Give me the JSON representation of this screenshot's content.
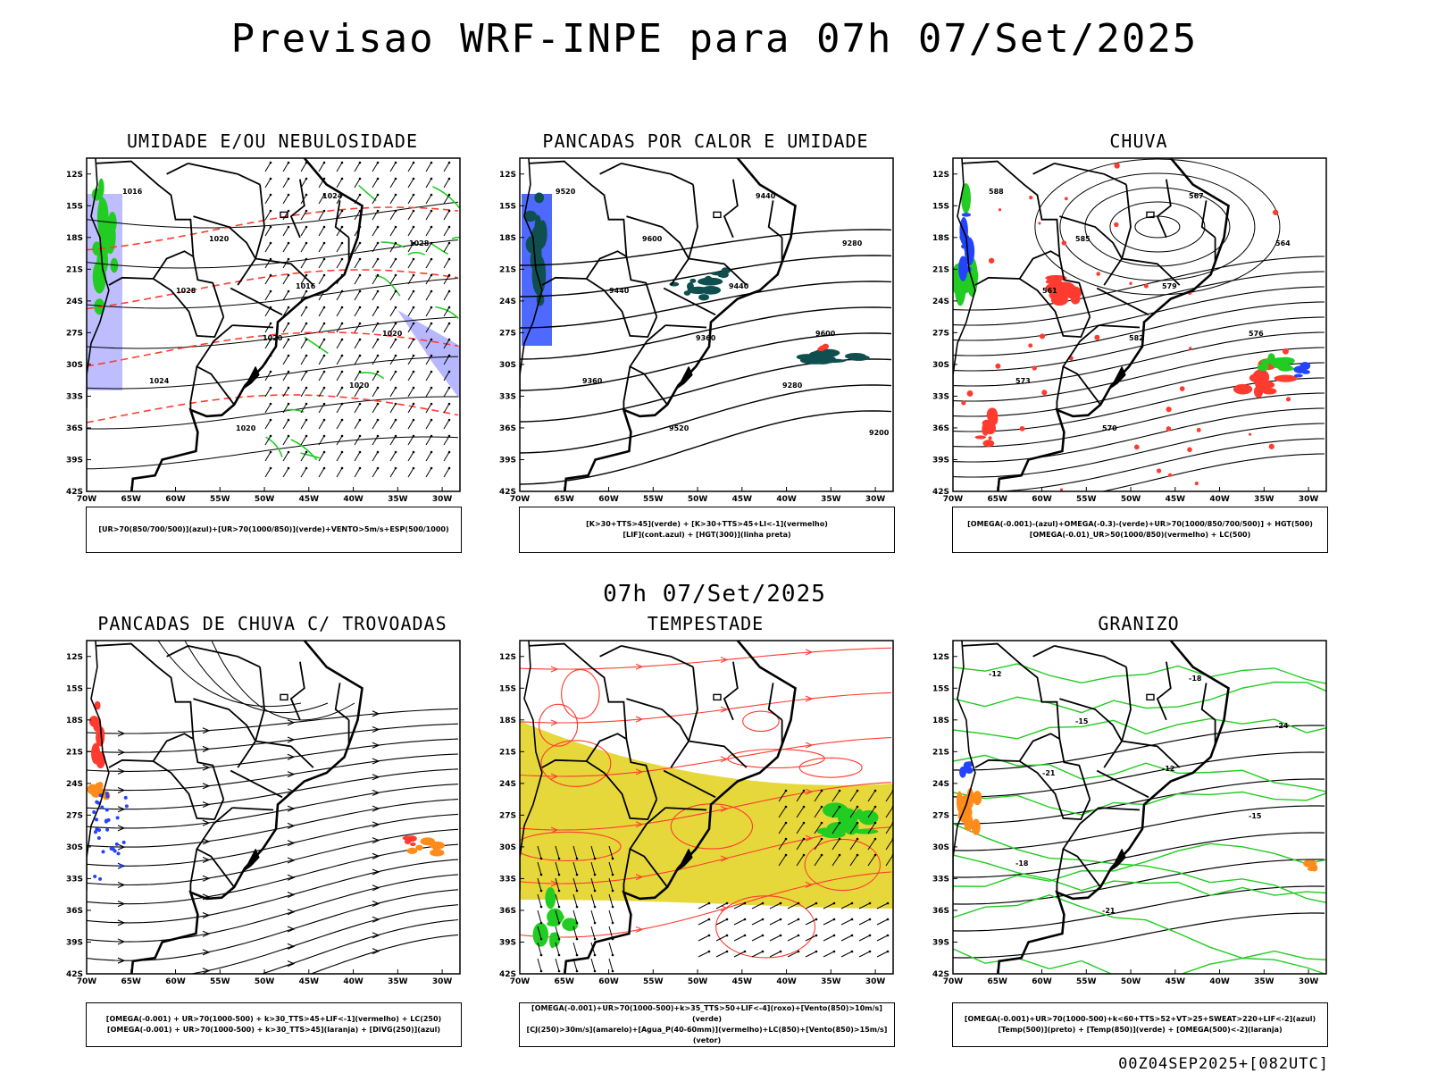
{
  "header": {
    "title": "Previsao WRF-INPE  para 07h 07/Set/2025"
  },
  "middle_label": "07h 07/Set/2025",
  "footer_stamp": "00Z04SEP2025+[082UTC]",
  "axes": {
    "lat_labels": [
      "12S",
      "15S",
      "18S",
      "21S",
      "24S",
      "27S",
      "30S",
      "33S",
      "36S",
      "39S",
      "42S"
    ],
    "lon_labels": [
      "70W",
      "65W",
      "60W",
      "55W",
      "50W",
      "45W",
      "40W",
      "35W",
      "30W"
    ]
  },
  "panels": [
    {
      "title": "UMIDADE E/OU NEBULOSIDADE",
      "legend": [
        "[UR>70(850/700/500)](azul)+[UR>70(1000/850)](verde)+VENTO>5m/s+ESP(500/1000)"
      ],
      "contour_labels": [
        "1016",
        "1020",
        "1016",
        "1020",
        "1024",
        "1020",
        "1024",
        "1028",
        "1028",
        "1020",
        "1020"
      ]
    },
    {
      "title": "PANCADAS POR CALOR E UMIDADE",
      "legend": [
        "[K>30+TTS>45](verde)  +  [K>30+TTS>45+LI<-1](vermelho)",
        "[LIF](cont.azul)  +  [HGT(300)](linha preta)"
      ],
      "contour_labels": [
        "9520",
        "9600",
        "9440",
        "9600",
        "9360",
        "9520",
        "9440",
        "9280",
        "9440",
        "9360",
        "9280",
        "9200"
      ]
    },
    {
      "title": "CHUVA",
      "legend": [
        "[OMEGA(-0.001)-(azul)+OMEGA(-0.3)-(verde)+UR>70(1000/850/700/500)]  +  HGT(500)",
        "[OMEGA(-0.01)_UR>50(1000/850)(vermelho)  +  LC(500)"
      ],
      "contour_labels": [
        "588",
        "585",
        "579",
        "576",
        "573",
        "570",
        "567",
        "564",
        "561",
        "582"
      ]
    },
    {
      "title": "PANCADAS DE CHUVA C/ TROVOADAS",
      "legend": [
        "[OMEGA(-0.001)  +  UR>70(1000-500)  +  k>30_TTS>45+LIF<-1](vermelho)  +  LC(250)",
        "[OMEGA(-0.001)  +  UR>70(1000-500)  +  k>30_TTS>45](laranja)  +  [DIVG(250)](azul)"
      ],
      "contour_labels": []
    },
    {
      "title": "TEMPESTADE",
      "legend": [
        "[OMEGA(-0.001)+UR>70(1000-500)+k>35_TTS>50+LIF<-4](roxo)+[Vento(850)>10m/s](verde)",
        "[CJ(250)>30m/s](amarelo)+[Agua_P(40-60mm)](vermelho)+LC(850)+[Vento(850)>15m/s](vetor)"
      ],
      "contour_labels": []
    },
    {
      "title": "GRANIZO",
      "legend": [
        "[OMEGA(-0.001)+UR>70(1000-500)+k<60+TTS>52+VT>25+SWEAT>220+LIF<-2](azul)",
        "[Temp(500)](preto)  +  [Temp(850)](verde)  +  [OMEGA(500)<-2](laranja)"
      ],
      "contour_labels": [
        "-12",
        "-15",
        "-12",
        "-15",
        "-18",
        "-21",
        "-18",
        "-24",
        "-21"
      ]
    }
  ],
  "colors": {
    "humid_blue": "#7b7bff",
    "humid_green": "#22cc22",
    "red": "#ff3b30",
    "orange": "#ff8c1a",
    "dark_teal": "#0f4f4f",
    "yellow": "#e6d83a",
    "blue": "#2244ff"
  }
}
